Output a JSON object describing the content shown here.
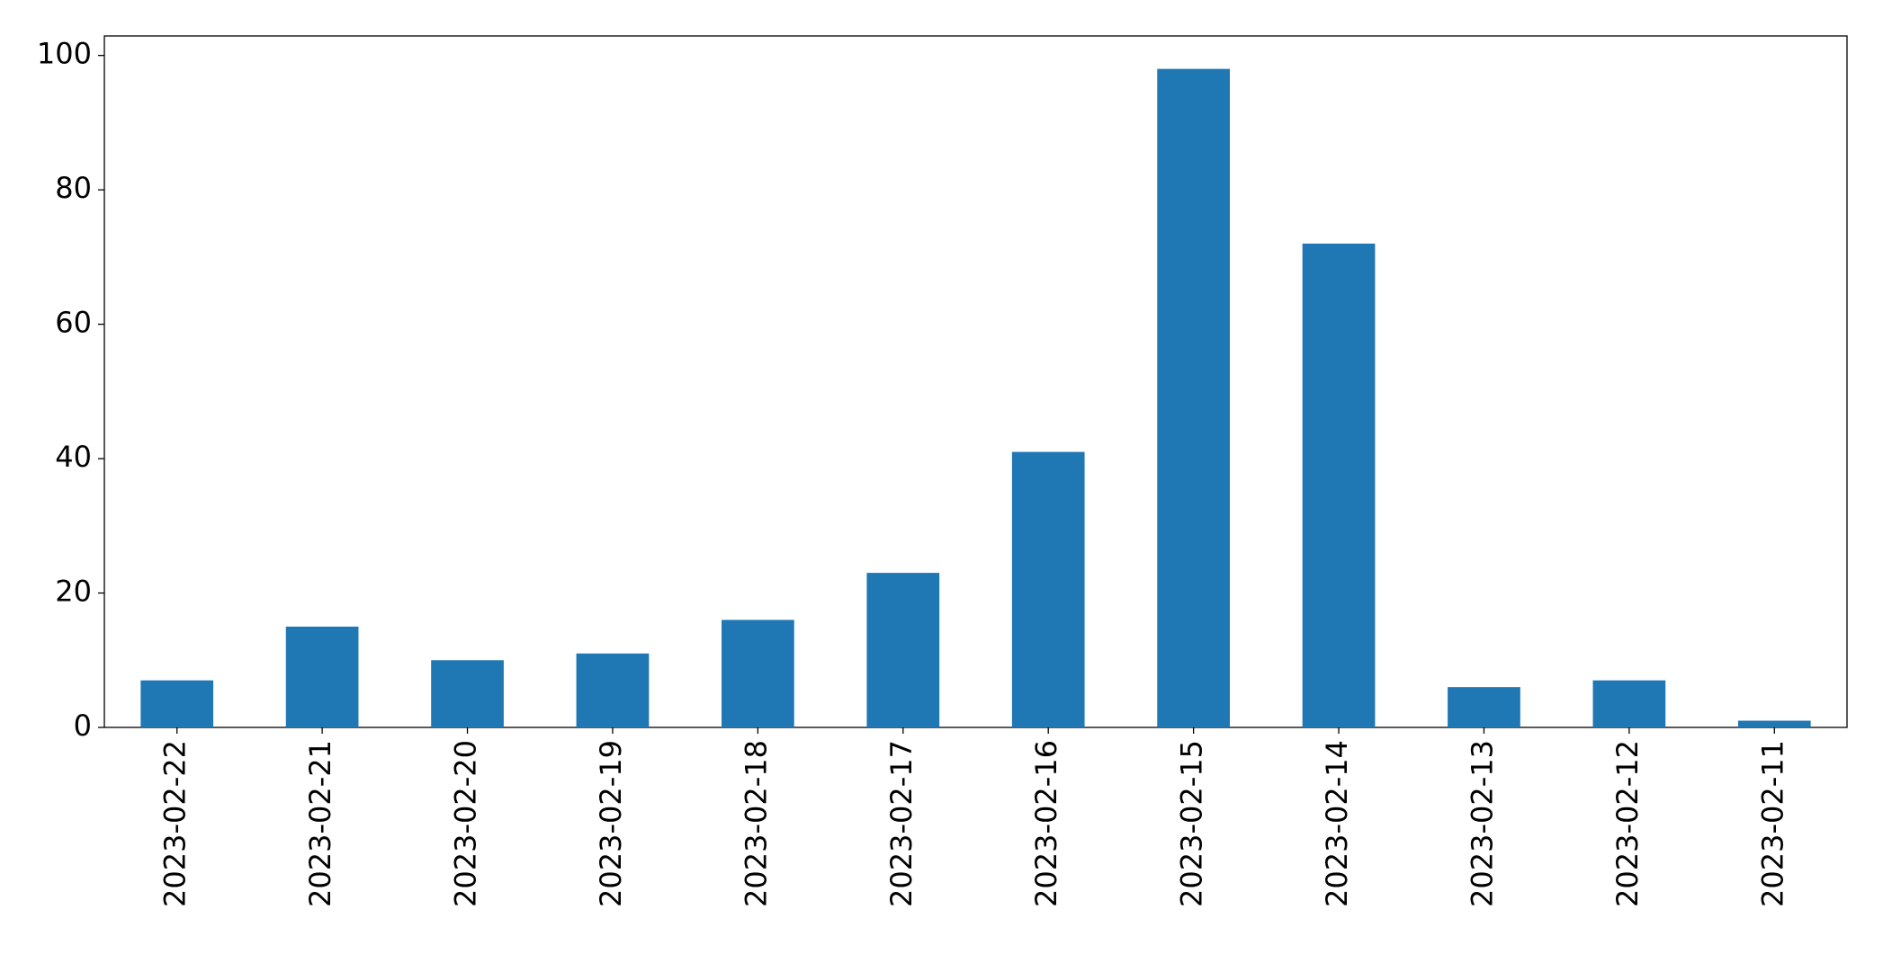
{
  "chart_data": {
    "type": "bar",
    "categories": [
      "2023-02-22",
      "2023-02-21",
      "2023-02-20",
      "2023-02-19",
      "2023-02-18",
      "2023-02-17",
      "2023-02-16",
      "2023-02-15",
      "2023-02-14",
      "2023-02-13",
      "2023-02-12",
      "2023-02-11"
    ],
    "values": [
      7,
      15,
      10,
      11,
      16,
      23,
      41,
      98,
      72,
      6,
      7,
      1
    ],
    "color": "#1f77b4",
    "ylim": [
      0,
      102.9
    ],
    "yticks": [
      0,
      20,
      40,
      60,
      80,
      100
    ],
    "grid": false
  }
}
